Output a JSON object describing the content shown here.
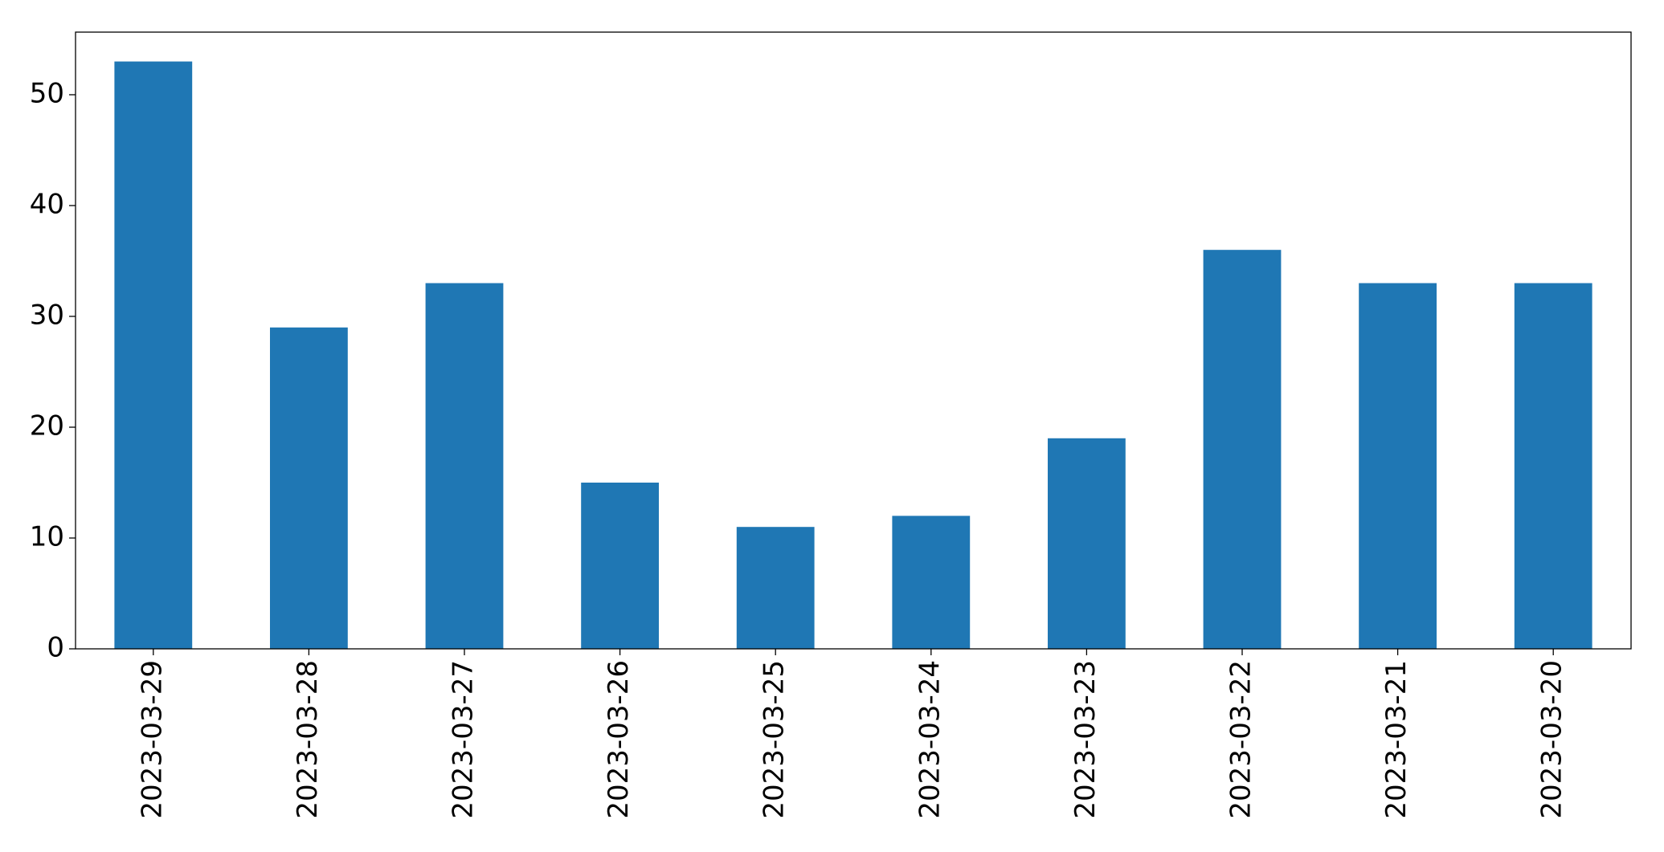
{
  "chart_data": {
    "type": "bar",
    "categories": [
      "2023-03-29",
      "2023-03-28",
      "2023-03-27",
      "2023-03-26",
      "2023-03-25",
      "2023-03-24",
      "2023-03-23",
      "2023-03-22",
      "2023-03-21",
      "2023-03-20"
    ],
    "values": [
      53,
      29,
      33,
      15,
      11,
      12,
      19,
      36,
      33,
      33
    ],
    "color": "#1f77b4",
    "ylim": [
      0,
      55.65
    ],
    "yticks": [
      0,
      10,
      20,
      30,
      40,
      50
    ],
    "grid": false
  }
}
